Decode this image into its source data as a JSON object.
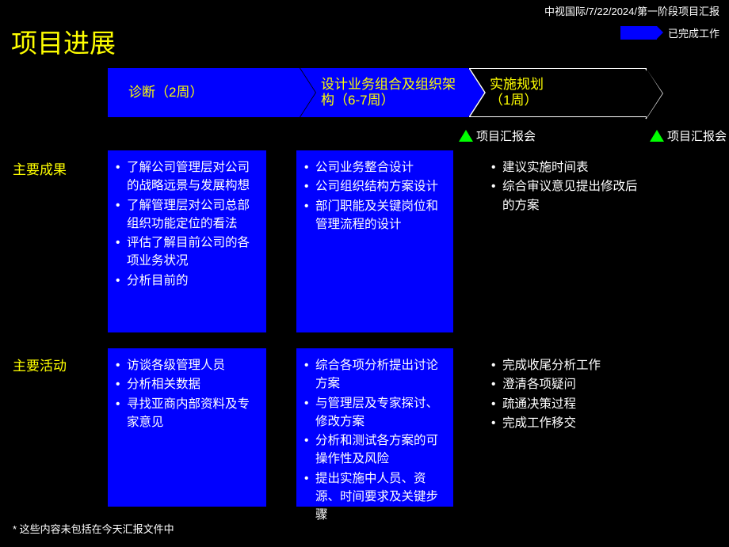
{
  "header": "中视国际/7/22/2024/第一阶段项目汇报",
  "title": "项目进展",
  "legend": {
    "label": "已完成工作",
    "color": "#0000ff"
  },
  "phases": [
    {
      "label": "诊断（2周）",
      "completed": true
    },
    {
      "label": "设计业务组合及组织架构（6-7周）",
      "completed": true
    },
    {
      "label": "实施规划\n（1周）",
      "completed": false
    }
  ],
  "milestones": [
    {
      "label": "项目汇报会",
      "marker_color": "#00ff00"
    },
    {
      "label": "项目汇报会",
      "marker_color": "#00ff00"
    }
  ],
  "row_labels": {
    "r1": "主要成果",
    "r2": "主要活动"
  },
  "cells": {
    "r1c1": [
      "了解公司管理层对公司的战略远景与发展构想",
      "了解管理层对公司总部组织功能定位的看法",
      "评估了解目前公司的各项业务状况",
      "分析目前的"
    ],
    "r1c2": [
      "公司业务整合设计",
      "公司组织结构方案设计",
      "部门职能及关键岗位和管理流程的设计"
    ],
    "r1c3": [
      "建议实施时间表",
      "综合审议意见提出修改后的方案"
    ],
    "r2c1": [
      "访谈各级管理人员",
      "分析相关数据",
      "寻找亚商内部资料及专家意见"
    ],
    "r2c2": [
      "综合各项分析提出讨论方案",
      "与管理层及专家探讨、修改方案",
      "分析和测试各方案的可操作性及风险",
      "提出实施中人员、资源、时间要求及关键步骤"
    ],
    "r2c3": [
      "完成收尾分析工作",
      "澄清各项疑问",
      "疏通决策过程",
      "完成工作移交"
    ]
  },
  "footnote": "*   这些内容未包括在今天汇报文件中",
  "style": {
    "bg": "#000000",
    "accent": "#ffff00",
    "panel_fill": "#0000ff",
    "text": "#ffffff",
    "marker": "#00ff00",
    "title_fontsize": 33,
    "body_fontsize": 15.5,
    "phase_fontsize": 17
  }
}
